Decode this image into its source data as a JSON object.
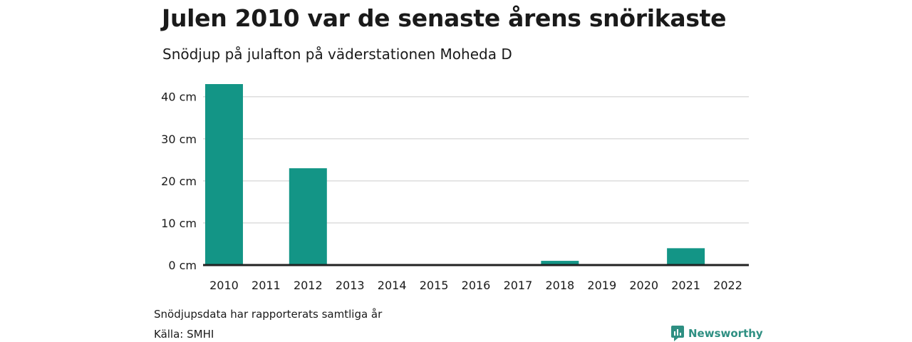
{
  "title": "Julen 2010 var de senaste årens snörikaste",
  "subtitle": "Snödjup på julafton på väderstationen Moheda D",
  "note": "Snödjupsdata har rapporterats samtliga år",
  "source": "Källa: SMHI",
  "brand": {
    "name": "Newsworthy",
    "icon": "newsworthy-logo-icon",
    "color": "#2e8f82"
  },
  "colors": {
    "bar": "#139586",
    "grid": "#dddddd",
    "baseline": "#222222"
  },
  "chart_data": {
    "type": "bar",
    "categories": [
      "2010",
      "2011",
      "2012",
      "2013",
      "2014",
      "2015",
      "2016",
      "2017",
      "2018",
      "2019",
      "2020",
      "2021",
      "2022"
    ],
    "values": [
      43,
      0,
      23,
      0,
      0,
      0,
      0,
      0,
      1,
      0,
      0,
      4,
      0
    ],
    "yticks": [
      "0 cm",
      "10 cm",
      "20 cm",
      "30 cm",
      "40 cm"
    ],
    "ytick_values": [
      0,
      10,
      20,
      30,
      40
    ],
    "ylim": [
      0,
      43
    ],
    "grid": true
  }
}
